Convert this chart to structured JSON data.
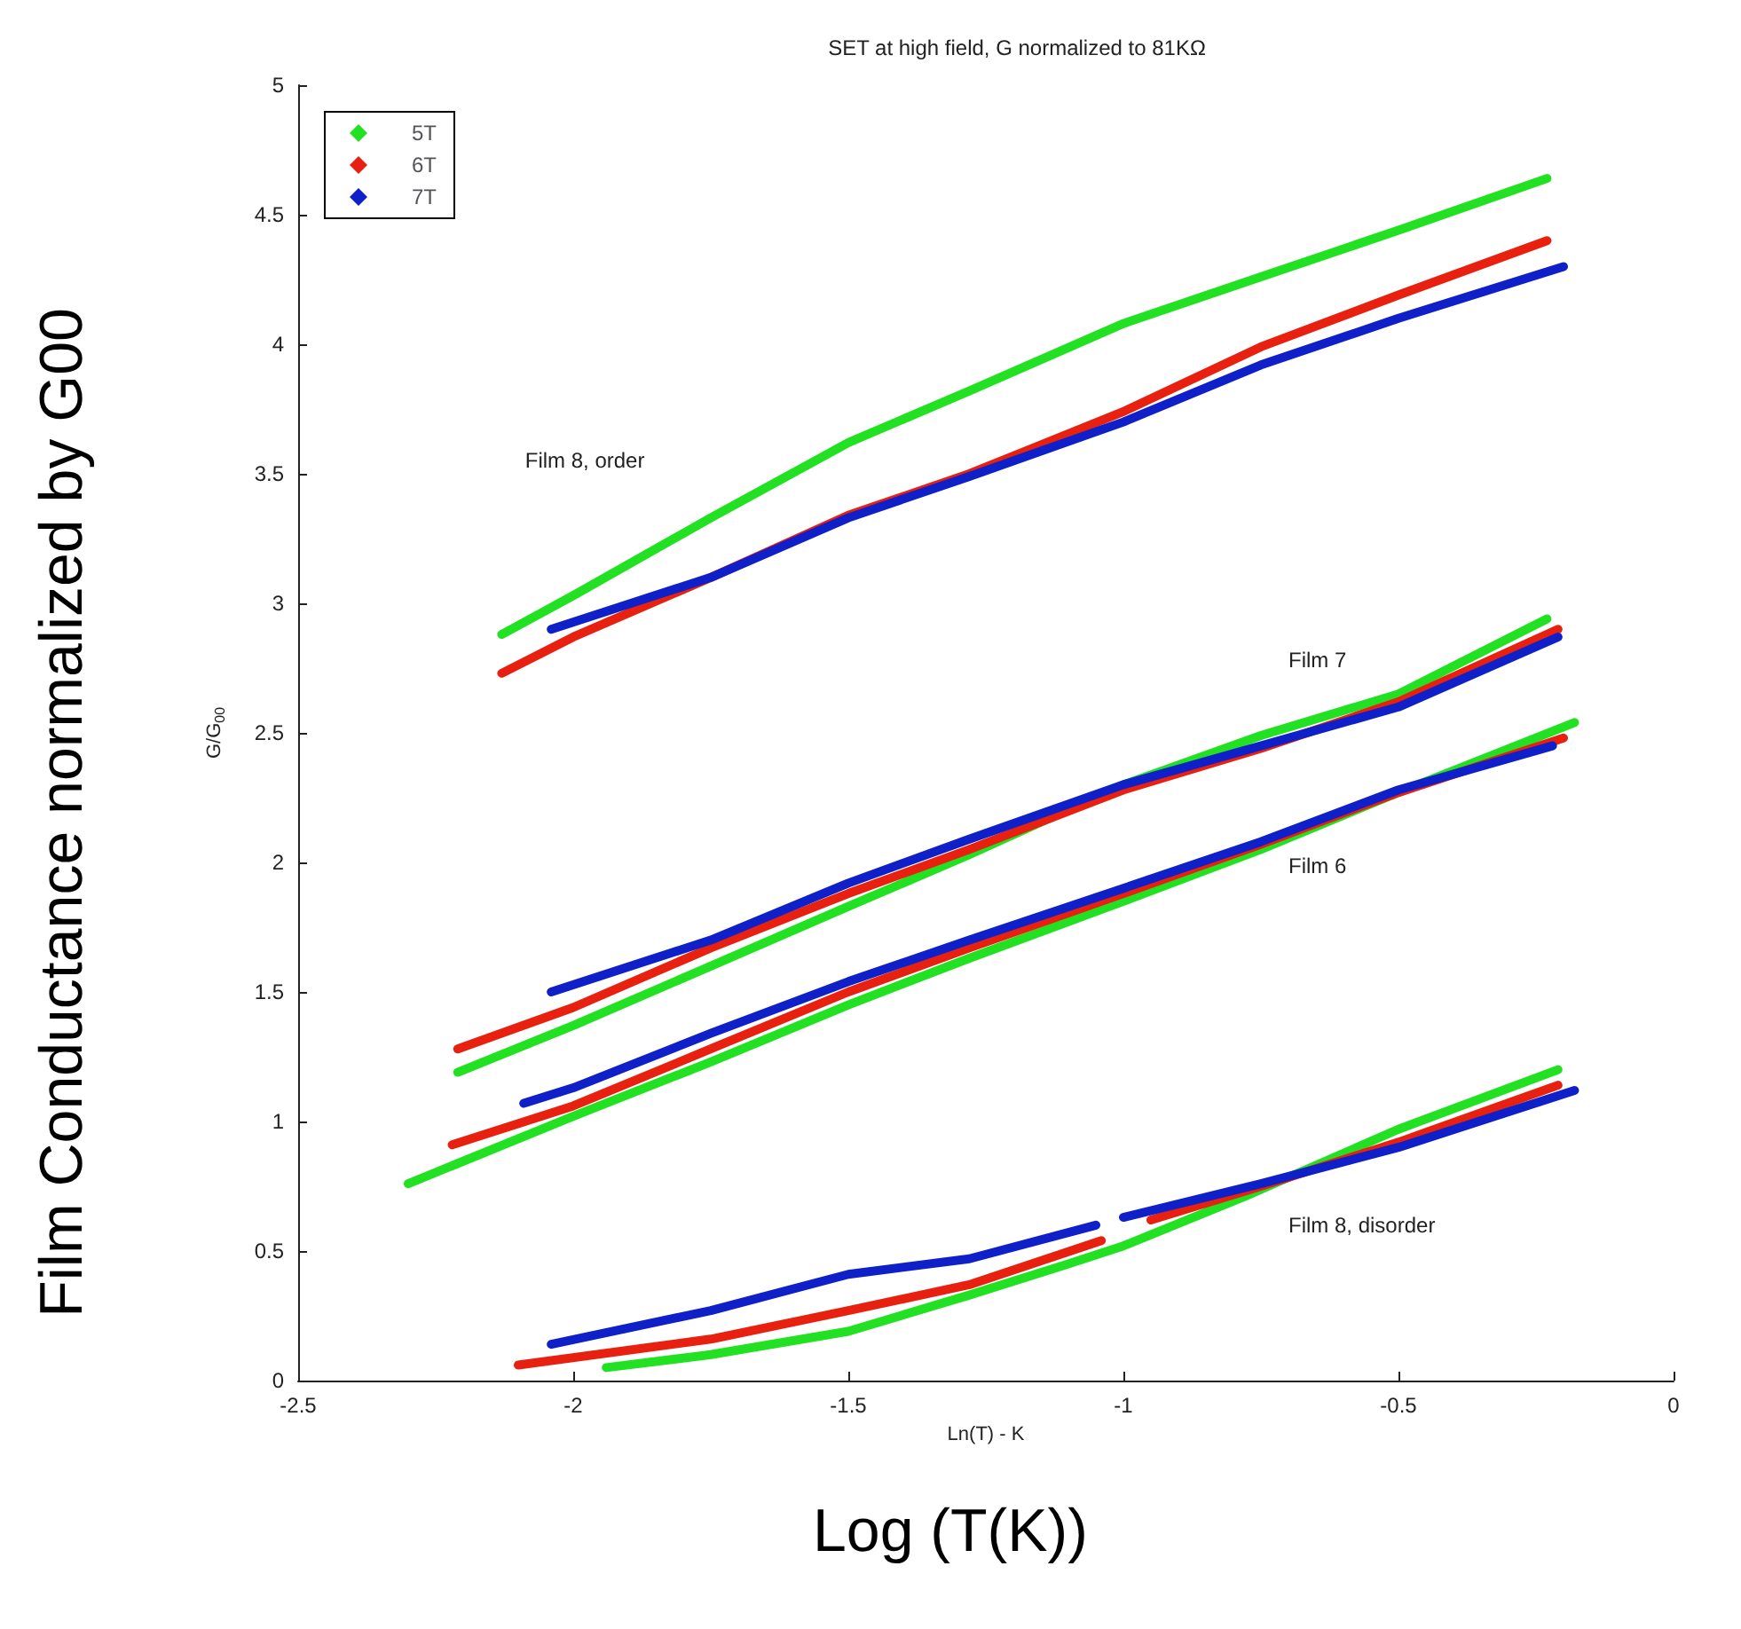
{
  "chart_data": {
    "type": "line",
    "title": "SET at high field, G normalized to 81KΩ",
    "xlabel": "Ln(T) - K",
    "ylabel": "G/G$_{00}$",
    "xlim": [
      -2.5,
      0
    ],
    "xticks": [
      -2.5,
      -2,
      -1.5,
      -1,
      -0.5,
      0
    ],
    "ylim": [
      0,
      5
    ],
    "yticks": [
      0,
      0.5,
      1,
      1.5,
      2,
      2.5,
      3,
      3.5,
      4,
      4.5,
      5
    ],
    "grid": false,
    "legend": "top left",
    "marker": "none",
    "line_style": "solid",
    "series": [
      {
        "name": "5T",
        "color": "#22e022",
        "x": [
          -2.13,
          -2.0,
          -1.75,
          -1.5,
          -1.28,
          -1.0,
          -0.75,
          -0.5,
          -0.23
        ],
        "values": [
          2.88,
          3.03,
          3.33,
          3.62,
          3.82,
          4.08,
          4.26,
          4.44,
          4.64
        ]
      },
      {
        "name": "6T",
        "color": "#e82010",
        "x": [
          -2.13,
          -2.0,
          -1.75,
          -1.5,
          -1.28,
          -1.0,
          -0.75,
          -0.5,
          -0.23
        ],
        "values": [
          2.73,
          2.87,
          3.1,
          3.34,
          3.5,
          3.74,
          3.99,
          4.19,
          4.4
        ]
      },
      {
        "name": "7T",
        "color": "#1020c8",
        "x": [
          -2.04,
          -1.75,
          -1.5,
          -1.28,
          -1.0,
          -0.75,
          -0.5,
          -0.2
        ],
        "values": [
          2.9,
          3.1,
          3.33,
          3.49,
          3.7,
          3.92,
          4.1,
          4.3
        ]
      },
      {
        "color": "#22e022",
        "x": [
          -2.21,
          -2.0,
          -1.75,
          -1.5,
          -1.28,
          -1.0,
          -0.75,
          -0.5,
          -0.23
        ],
        "values": [
          1.19,
          1.37,
          1.6,
          1.83,
          2.03,
          2.3,
          2.49,
          2.65,
          2.94
        ]
      },
      {
        "color": "#e82010",
        "x": [
          -2.21,
          -2.0,
          -1.75,
          -1.5,
          -1.28,
          -1.0,
          -0.75,
          -0.5,
          -0.21
        ],
        "values": [
          1.28,
          1.44,
          1.67,
          1.88,
          2.05,
          2.28,
          2.44,
          2.62,
          2.9
        ]
      },
      {
        "color": "#1020c8",
        "x": [
          -2.04,
          -1.75,
          -1.5,
          -1.28,
          -1.0,
          -0.75,
          -0.5,
          -0.21
        ],
        "values": [
          1.5,
          1.7,
          1.92,
          2.09,
          2.3,
          2.45,
          2.6,
          2.87
        ]
      },
      {
        "color": "#22e022",
        "x": [
          -2.3,
          -2.0,
          -1.75,
          -1.5,
          -1.28,
          -1.0,
          -0.75,
          -0.5,
          -0.18
        ],
        "values": [
          0.76,
          1.02,
          1.23,
          1.45,
          1.63,
          1.85,
          2.05,
          2.27,
          2.54
        ]
      },
      {
        "color": "#e82010",
        "x": [
          -2.22,
          -2.0,
          -1.75,
          -1.5,
          -1.28,
          -1.0,
          -0.75,
          -0.5,
          -0.2
        ],
        "values": [
          0.91,
          1.06,
          1.28,
          1.5,
          1.67,
          1.88,
          2.07,
          2.27,
          2.48
        ]
      },
      {
        "color": "#1020c8",
        "x": [
          -2.09,
          -2.0,
          -1.75,
          -1.5,
          -1.28,
          -1.0,
          -0.75,
          -0.5,
          -0.22
        ],
        "values": [
          1.07,
          1.13,
          1.34,
          1.54,
          1.7,
          1.9,
          2.08,
          2.28,
          2.45
        ]
      },
      {
        "color": "#22e022",
        "x": [
          -1.94,
          -1.75,
          -1.5,
          -1.28,
          -1.1,
          -1.0,
          -0.78,
          -0.5,
          -0.21
        ],
        "values": [
          0.05,
          0.1,
          0.19,
          0.33,
          0.45,
          0.52,
          0.71,
          0.97,
          1.2
        ]
      },
      {
        "color": "#e82010",
        "x": [
          -2.1,
          -1.75,
          -1.5,
          -1.28,
          -1.04,
          -1.0,
          -0.95,
          -0.75,
          -0.5,
          -0.21
        ],
        "values": [
          0.06,
          0.16,
          0.27,
          0.37,
          0.54,
          null,
          0.62,
          0.75,
          0.92,
          1.14
        ]
      },
      {
        "color": "#1020c8",
        "x": [
          -2.04,
          -1.75,
          -1.5,
          -1.28,
          -1.05,
          -1.02,
          -1.0,
          -0.75,
          -0.5,
          -0.18
        ],
        "values": [
          0.14,
          0.27,
          0.41,
          0.47,
          0.6,
          null,
          0.63,
          0.76,
          0.9,
          1.12
        ]
      }
    ],
    "annotations": [
      "Film 8, order",
      "Film 7",
      "Film 6",
      "Film 8, disorder",
      "Film Conductance normalized by G00",
      "Log (T(K))"
    ]
  }
}
